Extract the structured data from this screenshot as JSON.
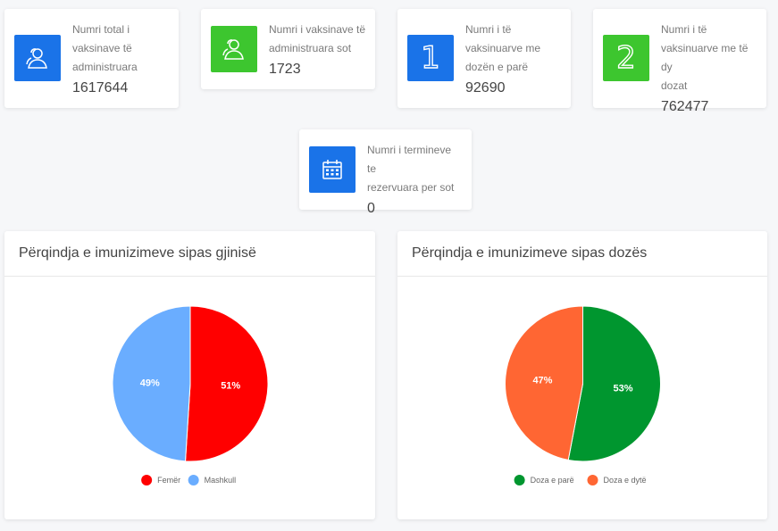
{
  "colors": {
    "blue": "#1a73e8",
    "green": "#3dc62f",
    "female": "#ff0000",
    "male": "#6aadff",
    "first_dose": "#00962f",
    "second_dose": "#ff6633"
  },
  "stats": [
    {
      "icon": "users-icon",
      "label_lines": [
        "Numri total i",
        "vaksinave të",
        "administruara"
      ],
      "value": "1617644"
    },
    {
      "icon": "users-icon",
      "label_lines": [
        "Numri i vaksinave të",
        "administruara sot"
      ],
      "value": "1723"
    },
    {
      "icon": "number-one-icon",
      "icon_text": "1",
      "label_lines": [
        "Numri i të",
        "vaksinuarve me",
        "dozën e parë"
      ],
      "value": "92690"
    },
    {
      "icon": "number-two-icon",
      "icon_text": "2",
      "label_lines": [
        "Numri i të",
        "vaksinuarve me të dy",
        "dozat"
      ],
      "value": "762477"
    },
    {
      "icon": "calendar-icon",
      "label_lines": [
        "Numri i termineve te",
        "rezervuara per sot"
      ],
      "value": "0"
    }
  ],
  "charts": {
    "gender": {
      "title": "Përqindja e imunizimeve sipas gjinisë"
    },
    "dose": {
      "title": "Përqindja e imunizimeve sipas dozës"
    }
  },
  "chart_data": [
    {
      "type": "pie",
      "title": "Përqindja e imunizimeve sipas gjinisë",
      "categories": [
        "Femër",
        "Mashkull"
      ],
      "values": [
        51,
        49
      ],
      "data_labels": [
        "51%",
        "49%"
      ],
      "colors": [
        "#ff0000",
        "#6aadff"
      ],
      "legend": "bottom"
    },
    {
      "type": "pie",
      "title": "Përqindja e imunizimeve sipas dozës",
      "categories": [
        "Doza e parë",
        "Doza e dytë"
      ],
      "values": [
        53,
        47
      ],
      "data_labels": [
        "53%",
        "47%"
      ],
      "colors": [
        "#00962f",
        "#ff6633"
      ],
      "legend": "bottom"
    }
  ]
}
